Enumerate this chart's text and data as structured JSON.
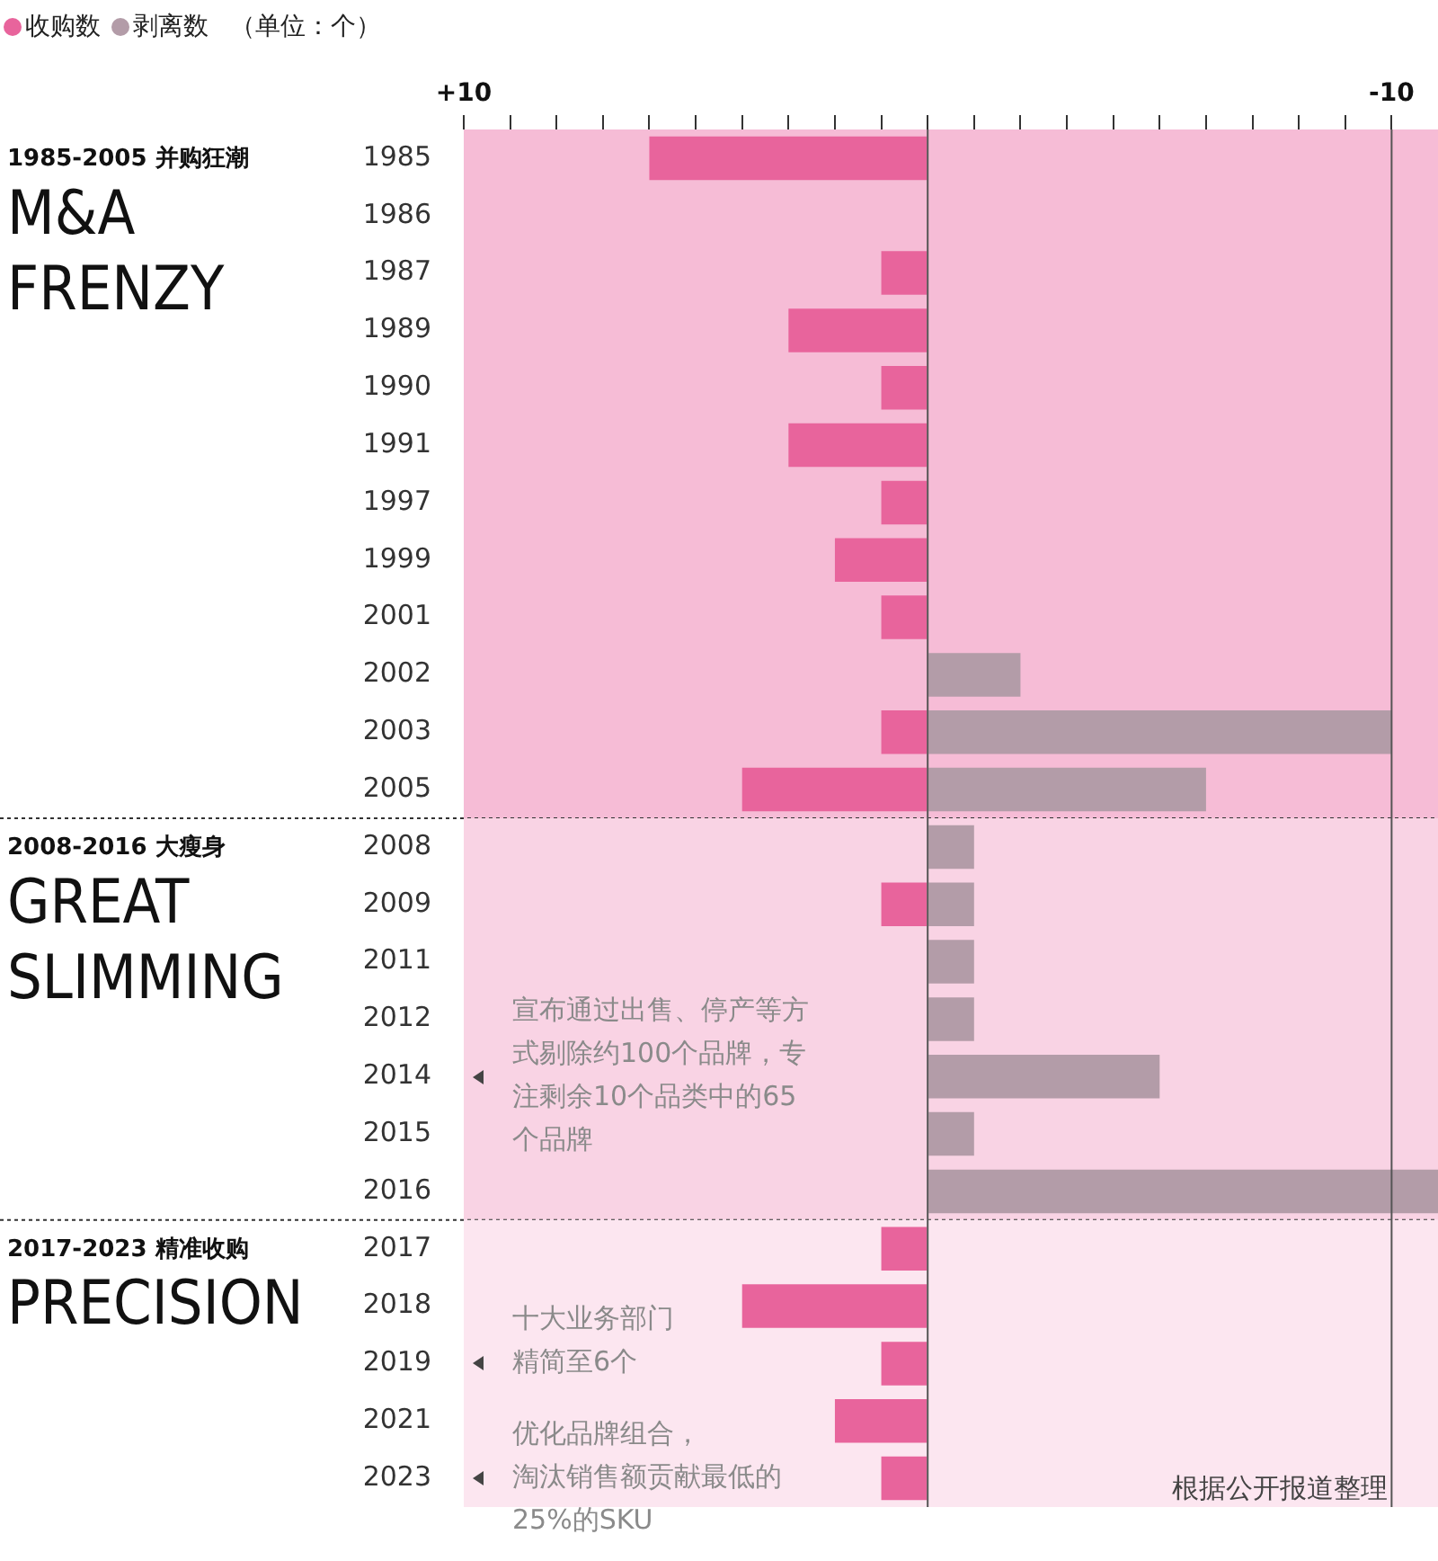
{
  "chart_data": {
    "type": "bar",
    "orientation": "horizontal",
    "stacked": true,
    "categories": [
      "1985",
      "1986",
      "1987",
      "1989",
      "1990",
      "1991",
      "1997",
      "1999",
      "2001",
      "2002",
      "2003",
      "2005",
      "2008",
      "2009",
      "2011",
      "2012",
      "2014",
      "2015",
      "2016",
      "2017",
      "2018",
      "2019",
      "2021",
      "2023"
    ],
    "series": [
      {
        "name": "收购数",
        "color": "#e8649c",
        "values": [
          6,
          null,
          1,
          3,
          1,
          3,
          1,
          2,
          1,
          null,
          1,
          4,
          null,
          1,
          null,
          null,
          null,
          null,
          null,
          1,
          4,
          1,
          2,
          1
        ]
      },
      {
        "name": "剥离数",
        "color": "#b39ca8",
        "values": [
          null,
          null,
          null,
          null,
          null,
          null,
          null,
          null,
          null,
          -2,
          -10,
          -6,
          -1,
          -1,
          -1,
          -1,
          -5,
          -1,
          -11,
          null,
          null,
          null,
          null,
          null
        ]
      }
    ],
    "legend": "top left",
    "legend_title": "（单位：个）",
    "xlim": [
      10,
      -11
    ],
    "xticks": [
      {
        "value": 10,
        "label": "+10"
      },
      {
        "value": 9,
        "label": null
      },
      {
        "value": 8,
        "label": null
      },
      {
        "value": 7,
        "label": null
      },
      {
        "value": 6,
        "label": null
      },
      {
        "value": 5,
        "label": null
      },
      {
        "value": 4,
        "label": null
      },
      {
        "value": 3,
        "label": null
      },
      {
        "value": 2,
        "label": null
      },
      {
        "value": 1,
        "label": null
      },
      {
        "value": 0,
        "label": null
      },
      {
        "value": -1,
        "label": null
      },
      {
        "value": -2,
        "label": null
      },
      {
        "value": -3,
        "label": null
      },
      {
        "value": -4,
        "label": null
      },
      {
        "value": -5,
        "label": null
      },
      {
        "value": -6,
        "label": null
      },
      {
        "value": -7,
        "label": null
      },
      {
        "value": -8,
        "label": null
      },
      {
        "value": -9,
        "label": null
      },
      {
        "value": -10,
        "label": "-10"
      }
    ],
    "grid": false,
    "ref_lines": [
      {
        "axis": "x",
        "value": 0,
        "color": "#555555"
      },
      {
        "axis": "x",
        "value": -10,
        "color": "#555555"
      }
    ],
    "bands": [
      {
        "axis": "y",
        "from": "1985",
        "to": "2005",
        "color": "#f6bcd6"
      },
      {
        "axis": "y",
        "from": "2008",
        "to": "2016",
        "color": "#f9d3e4"
      },
      {
        "axis": "y",
        "from": "2017",
        "to": "2023",
        "color": "#fce6f0"
      }
    ],
    "annotations": [
      "1985-2005 并购狂潮",
      "M&A FRENZY",
      "2008-2016 大瘦身",
      "GREAT SLIMMING",
      "2017-2023 精准收购",
      "PRECISION",
      "宣布通过出售、停产等方式剔除约100个品牌，专注剩余10个品类中的65个品牌",
      "十大业务部门精简至6个",
      "优化品牌组合，淘汰销售额贡献最低的25%的SKU",
      "根据公开报道整理"
    ]
  }
}
